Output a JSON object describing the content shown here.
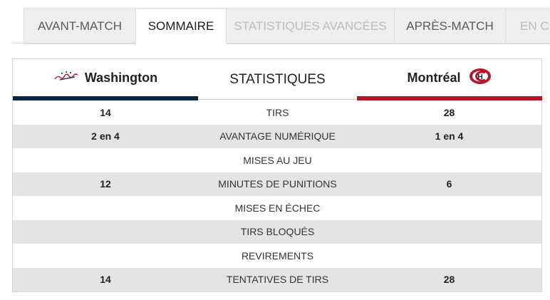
{
  "tabs": [
    {
      "label": "AVANT-MATCH",
      "state": "normal"
    },
    {
      "label": "SOMMAIRE",
      "state": "active"
    },
    {
      "label": "STATISTIQUES AVANCÉES",
      "state": "disabled"
    },
    {
      "label": "APRÈS-MATCH",
      "state": "normal"
    },
    {
      "label": "EN CH",
      "state": "disabled"
    }
  ],
  "stats": {
    "title": "STATISTIQUES",
    "home_team": {
      "name": "Washington",
      "logo_icon": "capitals-logo-icon",
      "color": "#0c2447"
    },
    "away_team": {
      "name": "Montréal",
      "logo_icon": "canadiens-logo-icon",
      "color": "#b5152b"
    },
    "rows": [
      {
        "home": "14",
        "label": "TIRS",
        "away": "28"
      },
      {
        "home": "2 en 4",
        "label": "AVANTAGE NUMÉRIQUE",
        "away": "1 en 4"
      },
      {
        "home": "",
        "label": "MISES AU JEU",
        "away": ""
      },
      {
        "home": "12",
        "label": "MINUTES DE PUNITIONS",
        "away": "6"
      },
      {
        "home": "",
        "label": "MISES EN ÉCHEC",
        "away": ""
      },
      {
        "home": "",
        "label": "TIRS BLOQUÉS",
        "away": ""
      },
      {
        "home": "",
        "label": "REVIREMENTS",
        "away": ""
      },
      {
        "home": "14",
        "label": "TENTATIVES DE TIRS",
        "away": "28"
      }
    ]
  }
}
